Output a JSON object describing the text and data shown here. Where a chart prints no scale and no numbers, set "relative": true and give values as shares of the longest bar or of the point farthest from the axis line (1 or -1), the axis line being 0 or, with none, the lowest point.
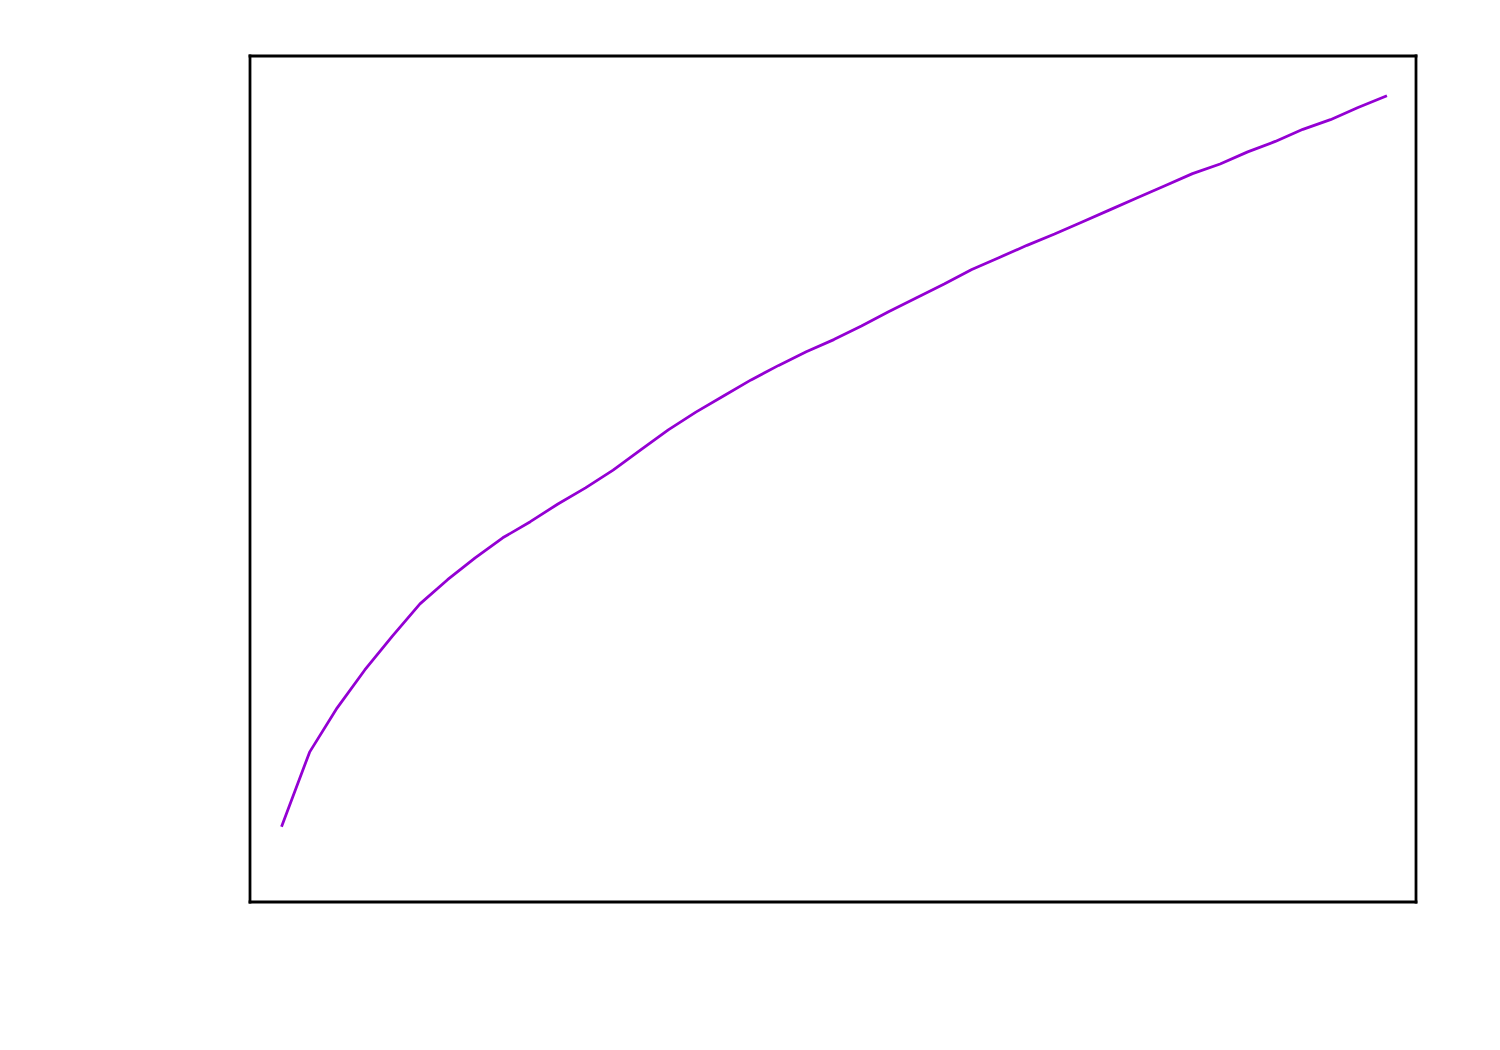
{
  "chart_data": {
    "type": "line",
    "relative": true,
    "categories": [
      null,
      null,
      null,
      null,
      null,
      null,
      null,
      null,
      null,
      null,
      null,
      null,
      null,
      null,
      null,
      null,
      null,
      null,
      null,
      null,
      null,
      null,
      null,
      null,
      null,
      null,
      null,
      null,
      null,
      null,
      null,
      null,
      null,
      null,
      null,
      null,
      null,
      null,
      null,
      null,
      null
    ],
    "series": [
      {
        "color": "#9400d3",
        "values": [
          0.095,
          0.186,
          0.241,
          0.288,
          0.33,
          0.37,
          0.4,
          0.427,
          0.452,
          0.472,
          0.494,
          0.514,
          0.536,
          0.561,
          0.586,
          0.608,
          0.628,
          0.648,
          0.666,
          0.683,
          0.698,
          0.715,
          0.733,
          0.75,
          0.767,
          0.785,
          0.8,
          0.815,
          0.829,
          0.844,
          0.859,
          0.874,
          0.889,
          0.904,
          0.916,
          0.931,
          0.944,
          0.959,
          0.971,
          0.986,
          1
        ]
      }
    ]
  }
}
